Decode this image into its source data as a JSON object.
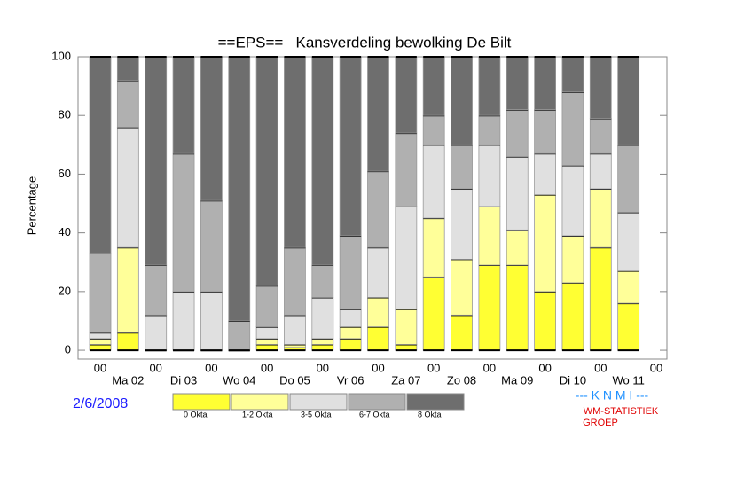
{
  "chart_data": {
    "type": "stacked_bar",
    "title": "==EPS==   Kansverdeling bewolking De Bilt",
    "y_label": "Percentage",
    "categories": [
      "00",
      "Ma 02",
      "00",
      "Di 03",
      "00",
      "Wo 04",
      "00",
      "Do 05",
      "00",
      "Vr 06",
      "00",
      "Za 07",
      "00",
      "Zo 08",
      "00",
      "Ma 09",
      "00",
      "Di 10",
      "00",
      "Wo 11"
    ],
    "x_last_label": "00",
    "series": [
      {
        "name": "0 Okta",
        "color": "#ffff33",
        "values": [
          2,
          6,
          0,
          0,
          0,
          0,
          2,
          1,
          2,
          4,
          8,
          2,
          25,
          12,
          29,
          29,
          20,
          23,
          35,
          16
        ]
      },
      {
        "name": "1-2 Okta",
        "color": "#ffff99",
        "values": [
          2,
          29,
          0,
          0,
          0,
          0,
          2,
          1,
          2,
          4,
          10,
          12,
          20,
          19,
          20,
          12,
          33,
          16,
          20,
          11
        ]
      },
      {
        "name": "3-5 Okta",
        "color": "#e0e0e0",
        "values": [
          2,
          41,
          12,
          20,
          20,
          0,
          4,
          10,
          14,
          6,
          17,
          35,
          25,
          24,
          21,
          25,
          14,
          24,
          12,
          20
        ]
      },
      {
        "name": "6-7 Okta",
        "color": "#b0b0b0",
        "values": [
          27,
          16,
          17,
          47,
          31,
          10,
          14,
          23,
          11,
          25,
          26,
          25,
          10,
          15,
          10,
          16,
          15,
          25,
          12,
          23
        ]
      },
      {
        "name": "8 Okta",
        "color": "#6e6e6e",
        "values": [
          67,
          8,
          71,
          33,
          49,
          90,
          78,
          65,
          71,
          61,
          39,
          26,
          20,
          30,
          20,
          18,
          18,
          12,
          21,
          30
        ]
      }
    ],
    "ylim": [
      -3,
      100
    ],
    "yticks": [
      0,
      20,
      40,
      60,
      80,
      100
    ],
    "date": "2/6/2008",
    "credits": [
      "--- K N M I ---",
      "WM-STATISTIEK",
      "GROEP"
    ]
  }
}
